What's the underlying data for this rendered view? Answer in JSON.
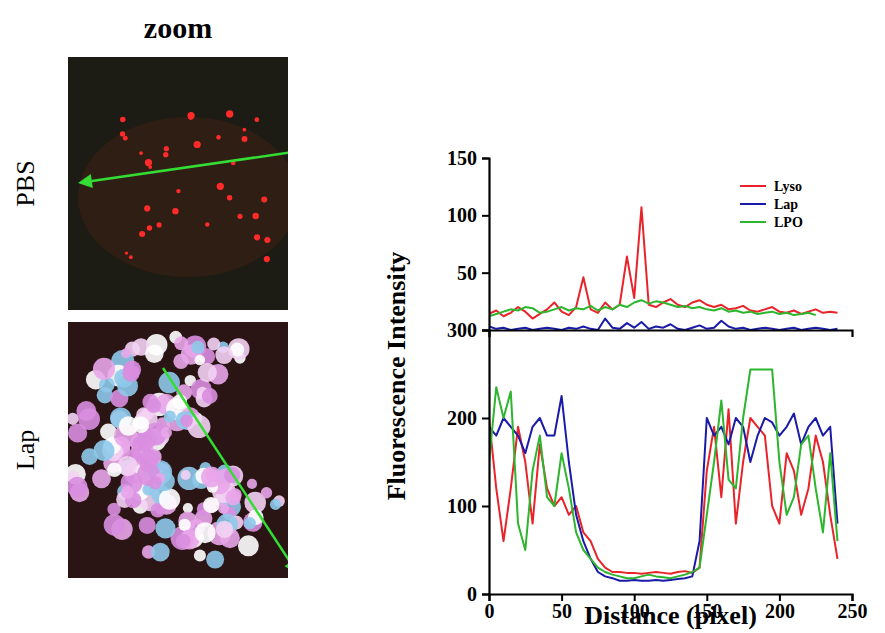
{
  "figure_panels": {
    "header": "zoom",
    "rows": [
      "PBS",
      "Lap"
    ]
  },
  "chart_data": [
    {
      "type": "line",
      "y_label": "Fluorescence Intensity",
      "x": [
        0,
        5,
        10,
        15,
        20,
        25,
        30,
        35,
        40,
        45,
        50,
        55,
        60,
        65,
        70,
        75,
        80,
        85,
        90,
        95,
        100,
        105,
        110,
        115,
        120,
        125,
        130,
        135,
        140,
        145,
        150,
        155,
        160,
        165,
        170,
        175,
        180,
        185,
        190,
        195,
        200,
        205,
        210,
        215,
        220,
        225,
        230,
        235,
        240
      ],
      "xlim": [
        0,
        250
      ],
      "ylim": [
        0,
        150
      ],
      "yticks": [
        50,
        100,
        150
      ],
      "tick_labels": "y",
      "legend": "upper right",
      "series": [
        {
          "name": "Lyso",
          "color": "#e8242a",
          "values": [
            14,
            17,
            12,
            15,
            20,
            16,
            10,
            14,
            18,
            24,
            16,
            13,
            20,
            46,
            18,
            15,
            24,
            18,
            22,
            64,
            28,
            107,
            22,
            20,
            24,
            27,
            22,
            20,
            24,
            26,
            22,
            20,
            22,
            18,
            19,
            21,
            17,
            16,
            18,
            20,
            16,
            15,
            17,
            14,
            16,
            18,
            15,
            16,
            15
          ]
        },
        {
          "name": "Lap",
          "color": "#1a1aa8",
          "values": [
            3,
            1,
            2,
            0,
            1,
            2,
            0,
            1,
            2,
            1,
            0,
            2,
            1,
            3,
            1,
            0,
            10,
            2,
            1,
            6,
            2,
            7,
            1,
            3,
            2,
            5,
            1,
            0,
            2,
            4,
            1,
            2,
            8,
            3,
            1,
            2,
            0,
            1,
            2,
            1,
            0,
            1,
            2,
            0,
            1,
            2,
            1,
            0,
            1
          ]
        },
        {
          "name": "LPO",
          "color": "#2db52d",
          "values": [
            12,
            14,
            16,
            18,
            17,
            20,
            19,
            15,
            16,
            18,
            20,
            17,
            19,
            18,
            21,
            17,
            20,
            18,
            22,
            20,
            24,
            26,
            23,
            25,
            24,
            22,
            20,
            21,
            19,
            20,
            18,
            17,
            19,
            16,
            17,
            15,
            16,
            14,
            15,
            16,
            14,
            15,
            13,
            14,
            15,
            13,
            null,
            null,
            null
          ]
        }
      ]
    },
    {
      "type": "line",
      "x_label": "Distance (pixel)",
      "x": [
        0,
        5,
        10,
        15,
        20,
        25,
        30,
        35,
        40,
        45,
        50,
        55,
        60,
        65,
        70,
        75,
        80,
        85,
        90,
        95,
        100,
        105,
        110,
        115,
        120,
        125,
        130,
        135,
        140,
        145,
        150,
        155,
        160,
        165,
        170,
        175,
        180,
        185,
        190,
        195,
        200,
        205,
        210,
        215,
        220,
        225,
        230,
        235,
        240
      ],
      "xlim": [
        0,
        250
      ],
      "xticks": [
        0,
        50,
        100,
        150,
        200,
        250
      ],
      "ylim": [
        0,
        300
      ],
      "yticks": [
        0,
        100,
        200,
        300
      ],
      "series": [
        {
          "name": "Lyso",
          "color": "#e8242a",
          "values": [
            200,
            120,
            60,
            120,
            190,
            150,
            80,
            170,
            120,
            100,
            110,
            90,
            100,
            70,
            60,
            40,
            30,
            25,
            25,
            24,
            24,
            23,
            24,
            25,
            24,
            23,
            25,
            26,
            24,
            30,
            140,
            190,
            110,
            210,
            80,
            150,
            200,
            190,
            180,
            100,
            80,
            160,
            140,
            90,
            120,
            180,
            150,
            90,
            40
          ]
        },
        {
          "name": "Lap",
          "color": "#1a1aa8",
          "values": [
            190,
            180,
            200,
            190,
            180,
            160,
            190,
            200,
            180,
            180,
            225,
            150,
            90,
            60,
            40,
            25,
            20,
            18,
            15,
            15,
            16,
            15,
            15,
            16,
            15,
            16,
            17,
            18,
            20,
            60,
            200,
            180,
            190,
            170,
            200,
            190,
            150,
            180,
            200,
            195,
            180,
            190,
            205,
            170,
            190,
            200,
            180,
            190,
            80
          ]
        },
        {
          "name": "LPO",
          "color": "#2db52d",
          "values": [
            150,
            235,
            200,
            230,
            80,
            50,
            140,
            180,
            110,
            100,
            160,
            120,
            70,
            50,
            40,
            30,
            25,
            22,
            20,
            18,
            18,
            20,
            22,
            20,
            19,
            18,
            20,
            22,
            25,
            30,
            90,
            150,
            220,
            130,
            120,
            200,
            255,
            255,
            255,
            255,
            150,
            90,
            110,
            170,
            180,
            120,
            70,
            160,
            60
          ]
        }
      ]
    }
  ]
}
